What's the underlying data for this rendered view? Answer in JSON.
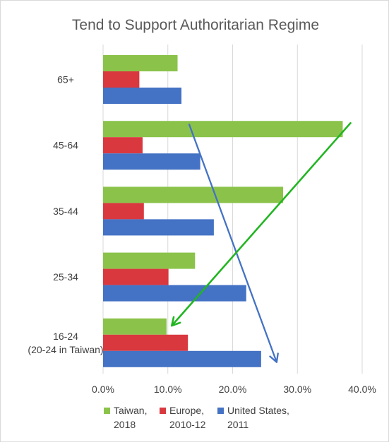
{
  "chart_data": {
    "type": "bar",
    "orientation": "horizontal",
    "title": "Tend to Support Authoritarian Regime",
    "categories": [
      [
        "65+"
      ],
      [
        "45-64"
      ],
      [
        "35-44"
      ],
      [
        "25-34"
      ],
      [
        "16-24",
        "(20-24 in Taiwan)"
      ]
    ],
    "series": [
      {
        "name_lines": [
          "Taiwan,",
          "2018"
        ],
        "color": "#8bc34a",
        "values": [
          11.5,
          37.0,
          27.8,
          14.2,
          9.8
        ]
      },
      {
        "name_lines": [
          "Europe,",
          "2010-12"
        ],
        "color": "#d9383f",
        "values": [
          5.6,
          6.1,
          6.3,
          10.1,
          13.1
        ]
      },
      {
        "name_lines": [
          "United States,",
          "2011"
        ],
        "color": "#4472c4",
        "values": [
          12.1,
          15.0,
          17.1,
          22.1,
          24.4
        ]
      }
    ],
    "xlim": [
      0,
      0.4
    ],
    "x_ticks": [
      0,
      0.1,
      0.2,
      0.3,
      0.4
    ],
    "x_tick_labels": [
      "0.0%",
      "10.0%",
      "20.0%",
      "30.0%",
      "40.0%"
    ],
    "grid": "vertical",
    "legend": "bottom",
    "annotations": [
      {
        "type": "arrow",
        "color": "#4472c4",
        "from": {
          "category": "45-64",
          "value": 13.3
        },
        "to": {
          "category": "16-24",
          "value": 26.8
        }
      },
      {
        "type": "arrow",
        "color": "#22b522",
        "from": {
          "category": "45-64",
          "value": 38.2
        },
        "to": {
          "category": "16-24",
          "value": 10.6
        }
      }
    ]
  }
}
